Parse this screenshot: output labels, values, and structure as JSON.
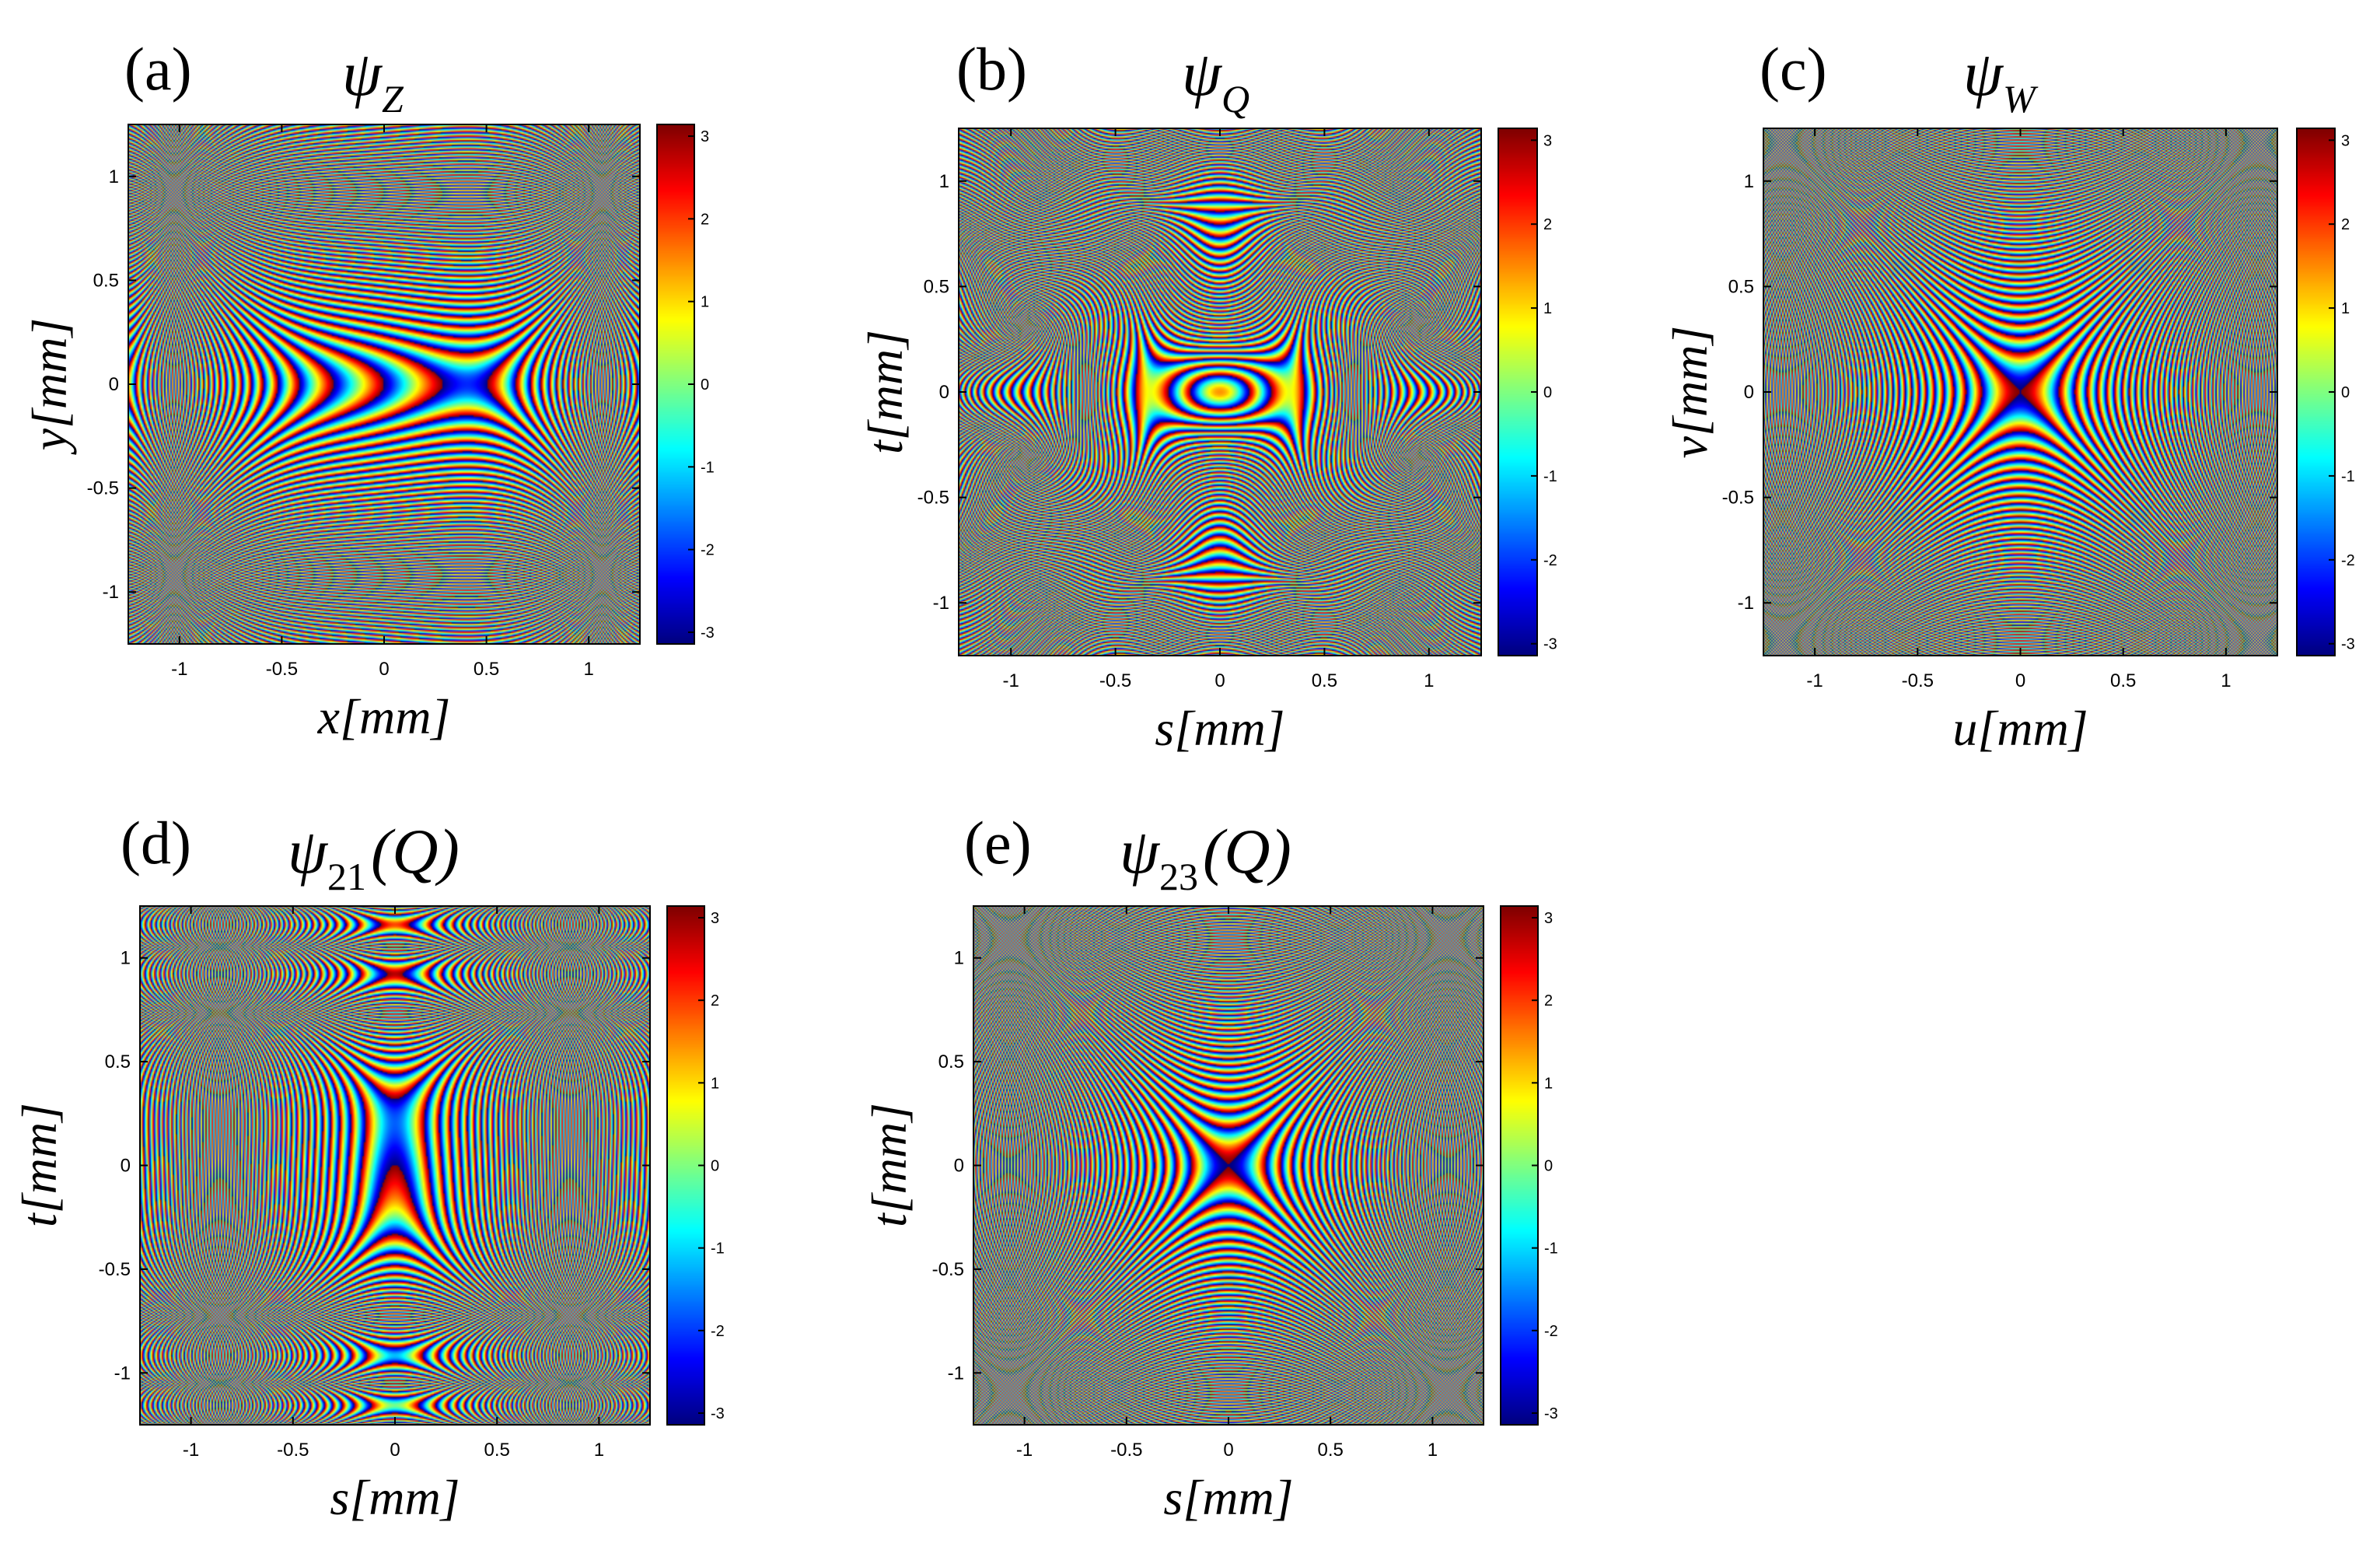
{
  "figure": {
    "panels": [
      {
        "id": "a",
        "label": "(a)",
        "title_symbol": "ψ",
        "title_sub": "Z",
        "title_suffix": "",
        "xlabel_var": "x",
        "ylabel_var": "y",
        "unit": "[mm]",
        "pattern": "Z"
      },
      {
        "id": "b",
        "label": "(b)",
        "title_symbol": "ψ",
        "title_sub": "Q",
        "title_suffix": "",
        "xlabel_var": "s",
        "ylabel_var": "t",
        "unit": "[mm]",
        "pattern": "Q"
      },
      {
        "id": "c",
        "label": "(c)",
        "title_symbol": "ψ",
        "title_sub": "W",
        "title_suffix": "",
        "xlabel_var": "u",
        "ylabel_var": "v",
        "unit": "[mm]",
        "pattern": "W"
      },
      {
        "id": "d",
        "label": "(d)",
        "title_symbol": "ψ",
        "title_sub": "21",
        "title_suffix": "(Q)",
        "xlabel_var": "s",
        "ylabel_var": "t",
        "unit": "[mm]",
        "pattern": "H"
      },
      {
        "id": "e",
        "label": "(e)",
        "title_symbol": "ψ",
        "title_sub": "23",
        "title_suffix": "(Q)",
        "xlabel_var": "s",
        "ylabel_var": "t",
        "unit": "[mm]",
        "pattern": "X"
      }
    ]
  },
  "chart_data": [
    {
      "type": "heatmap",
      "panel": "(a)",
      "title": "ψZ",
      "xlabel": "x[mm]",
      "ylabel": "y[mm]",
      "xlim": [
        -1.25,
        1.25
      ],
      "ylim": [
        -1.25,
        1.25
      ],
      "xticks": [
        -1,
        -0.5,
        0,
        0.5,
        1
      ],
      "yticks": [
        -1,
        -0.5,
        0,
        0.5,
        1
      ],
      "colorbar": {
        "range": [
          -3.14159,
          3.14159
        ],
        "ticks": [
          -3,
          -2,
          -1,
          0,
          1,
          2,
          3
        ],
        "colormap": "jet"
      }
    },
    {
      "type": "heatmap",
      "panel": "(b)",
      "title": "ψQ",
      "xlabel": "s[mm]",
      "ylabel": "t[mm]",
      "xlim": [
        -1.25,
        1.25
      ],
      "ylim": [
        -1.25,
        1.25
      ],
      "xticks": [
        -1,
        -0.5,
        0,
        0.5,
        1
      ],
      "yticks": [
        -1,
        -0.5,
        0,
        0.5,
        1
      ],
      "colorbar": {
        "range": [
          -3.14159,
          3.14159
        ],
        "ticks": [
          -3,
          -2,
          -1,
          0,
          1,
          2,
          3
        ],
        "colormap": "jet"
      }
    },
    {
      "type": "heatmap",
      "panel": "(c)",
      "title": "ψW",
      "xlabel": "u[mm]",
      "ylabel": "v[mm]",
      "xlim": [
        -1.25,
        1.25
      ],
      "ylim": [
        -1.25,
        1.25
      ],
      "xticks": [
        -1,
        -0.5,
        0,
        0.5,
        1
      ],
      "yticks": [
        -1,
        -0.5,
        0,
        0.5,
        1
      ],
      "colorbar": {
        "range": [
          -3.14159,
          3.14159
        ],
        "ticks": [
          -3,
          -2,
          -1,
          0,
          1,
          2,
          3
        ],
        "colormap": "jet"
      }
    },
    {
      "type": "heatmap",
      "panel": "(d)",
      "title": "ψ21(Q)",
      "xlabel": "s[mm]",
      "ylabel": "t[mm]",
      "xlim": [
        -1.25,
        1.25
      ],
      "ylim": [
        -1.25,
        1.25
      ],
      "xticks": [
        -1,
        -0.5,
        0,
        0.5,
        1
      ],
      "yticks": [
        -1,
        -0.5,
        0,
        0.5,
        1
      ],
      "colorbar": {
        "range": [
          -3.14159,
          3.14159
        ],
        "ticks": [
          -3,
          -2,
          -1,
          0,
          1,
          2,
          3
        ],
        "colormap": "jet"
      }
    },
    {
      "type": "heatmap",
      "panel": "(e)",
      "title": "ψ23(Q)",
      "xlabel": "s[mm]",
      "ylabel": "t[mm]",
      "xlim": [
        -1.25,
        1.25
      ],
      "ylim": [
        -1.25,
        1.25
      ],
      "xticks": [
        -1,
        -0.5,
        0,
        0.5,
        1
      ],
      "yticks": [
        -1,
        -0.5,
        0,
        0.5,
        1
      ],
      "colorbar": {
        "range": [
          -3.14159,
          3.14159
        ],
        "ticks": [
          -3,
          -2,
          -1,
          0,
          1,
          2,
          3
        ],
        "colormap": "jet"
      }
    }
  ]
}
